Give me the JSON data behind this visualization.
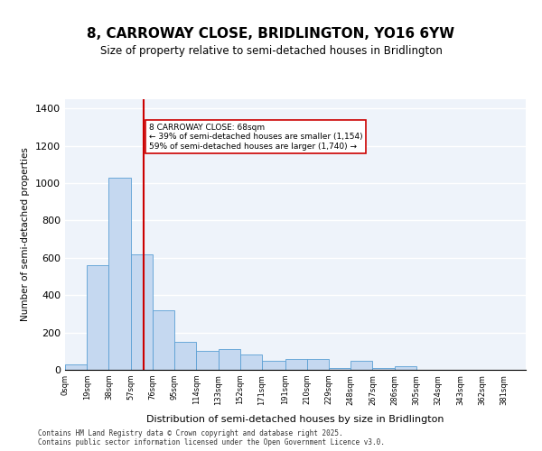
{
  "title": "8, CARROWAY CLOSE, BRIDLINGTON, YO16 6YW",
  "subtitle": "Size of property relative to semi-detached houses in Bridlington",
  "xlabel": "Distribution of semi-detached houses by size in Bridlington",
  "ylabel": "Number of semi-detached properties",
  "bar_color": "#c5d8f0",
  "bar_edge_color": "#5a9fd4",
  "background_color": "#eef3fa",
  "grid_color": "#ffffff",
  "property_size": 68,
  "property_line_color": "#cc0000",
  "annotation_text": "8 CARROWAY CLOSE: 68sqm\n← 39% of semi-detached houses are smaller (1,154)\n59% of semi-detached houses are larger (1,740) →",
  "annotation_box_color": "#ffffff",
  "annotation_box_edge": "#cc0000",
  "bin_labels": [
    "0sqm",
    "19sqm",
    "38sqm",
    "57sqm",
    "76sqm",
    "95sqm",
    "114sqm",
    "133sqm",
    "152sqm",
    "171sqm",
    "191sqm",
    "210sqm",
    "229sqm",
    "248sqm",
    "267sqm",
    "286sqm",
    "305sqm",
    "324sqm",
    "343sqm",
    "362sqm",
    "381sqm"
  ],
  "bin_edges": [
    0,
    19,
    38,
    57,
    76,
    95,
    114,
    133,
    152,
    171,
    191,
    210,
    229,
    248,
    267,
    286,
    305,
    324,
    343,
    362,
    381
  ],
  "bar_heights": [
    30,
    560,
    1030,
    620,
    320,
    150,
    100,
    110,
    80,
    50,
    60,
    60,
    10,
    50,
    10,
    20,
    0,
    0,
    0,
    0
  ],
  "ylim": [
    0,
    1450
  ],
  "yticks": [
    0,
    200,
    400,
    600,
    800,
    1000,
    1200,
    1400
  ],
  "footer": "Contains HM Land Registry data © Crown copyright and database right 2025.\nContains public sector information licensed under the Open Government Licence v3.0."
}
